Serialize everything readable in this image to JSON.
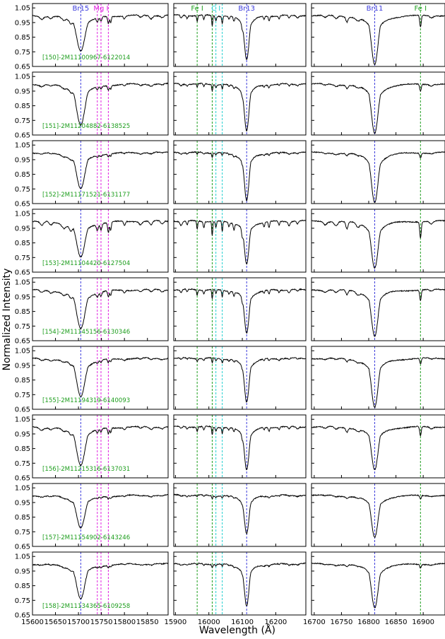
{
  "chart_data": {
    "type": "line",
    "ylabel": "Normalized Intensity",
    "xlabel": "Wavelength (Å)",
    "ylim": [
      0.65,
      1.08
    ],
    "yticks": [
      0.65,
      0.75,
      0.85,
      0.95,
      1.05
    ],
    "ytick_labels": [
      "0.65",
      "0.75",
      "0.85",
      "0.95",
      "1.05"
    ],
    "grid": false,
    "colors": {
      "spectrum": "#000000",
      "brackett": "#3b3bdc",
      "mg": "#e020e0",
      "fe": "#1e9e1e",
      "c": "#20d0d0",
      "star_label": "#1e9e1e"
    },
    "panels_columns": [
      {
        "xlim": [
          15600,
          15895
        ],
        "xticks": [
          15600,
          15650,
          15700,
          15750,
          15800,
          15850
        ],
        "xtick_labels": [
          "15600",
          "15650",
          "15700",
          "15750",
          "15800",
          "15850"
        ],
        "lines": [
          {
            "x": 15705,
            "label": "Br15",
            "color_key": "brackett"
          },
          {
            "x": 15741,
            "label": "",
            "color_key": "mg"
          },
          {
            "x": 15749,
            "label": "Mg I",
            "color_key": "mg"
          },
          {
            "x": 15765,
            "label": "",
            "color_key": "mg"
          }
        ]
      },
      {
        "xlim": [
          15895,
          16290
        ],
        "xticks": [
          15900,
          16000,
          16100,
          16200
        ],
        "xtick_labels": [
          "15900",
          "16000",
          "16100",
          "16200"
        ],
        "lines": [
          {
            "x": 15965,
            "label": "Fe I",
            "color_key": "fe"
          },
          {
            "x": 16010,
            "label": "",
            "color_key": "fe"
          },
          {
            "x": 16021,
            "label": "C I",
            "color_key": "c"
          },
          {
            "x": 16040,
            "label": "",
            "color_key": "c"
          },
          {
            "x": 16113,
            "label": "Br13",
            "color_key": "brackett"
          }
        ]
      },
      {
        "xlim": [
          16695,
          16940
        ],
        "xticks": [
          16700,
          16750,
          16800,
          16850,
          16900
        ],
        "xtick_labels": [
          "16700",
          "16750",
          "16800",
          "16850",
          "16900"
        ],
        "lines": [
          {
            "x": 16811,
            "label": "Br11",
            "color_key": "brackett"
          },
          {
            "x": 16895,
            "label": "Fe I",
            "color_key": "fe"
          }
        ]
      }
    ],
    "stars": [
      {
        "label": "[150]-2M11100967-6122014",
        "depths": [
          0.76,
          0.7,
          0.66
        ],
        "metal": 1.0
      },
      {
        "label": "[151]-2M11204882-6138525",
        "depths": [
          0.72,
          0.68,
          0.66
        ],
        "metal": 0.6
      },
      {
        "label": "[152]-2M11171521-6131177",
        "depths": [
          0.75,
          0.67,
          0.66
        ],
        "metal": 0.4
      },
      {
        "label": "[153]-2M11104420-6127504",
        "depths": [
          0.75,
          0.7,
          0.68
        ],
        "metal": 1.4
      },
      {
        "label": "[154]-2M11145156-6130346",
        "depths": [
          0.73,
          0.7,
          0.68
        ],
        "metal": 0.9
      },
      {
        "label": "[155]-2M11194319-6140093",
        "depths": [
          0.74,
          0.7,
          0.66
        ],
        "metal": 0.5
      },
      {
        "label": "[156]-2M11215316-6137031",
        "depths": [
          0.74,
          0.71,
          0.7
        ],
        "metal": 0.8
      },
      {
        "label": "[157]-2M11154902-6143246",
        "depths": [
          0.78,
          0.74,
          0.71
        ],
        "metal": 0.3
      },
      {
        "label": "[158]-2M11134365-6109258",
        "depths": [
          0.76,
          0.71,
          0.7
        ],
        "metal": 0.3
      }
    ]
  }
}
